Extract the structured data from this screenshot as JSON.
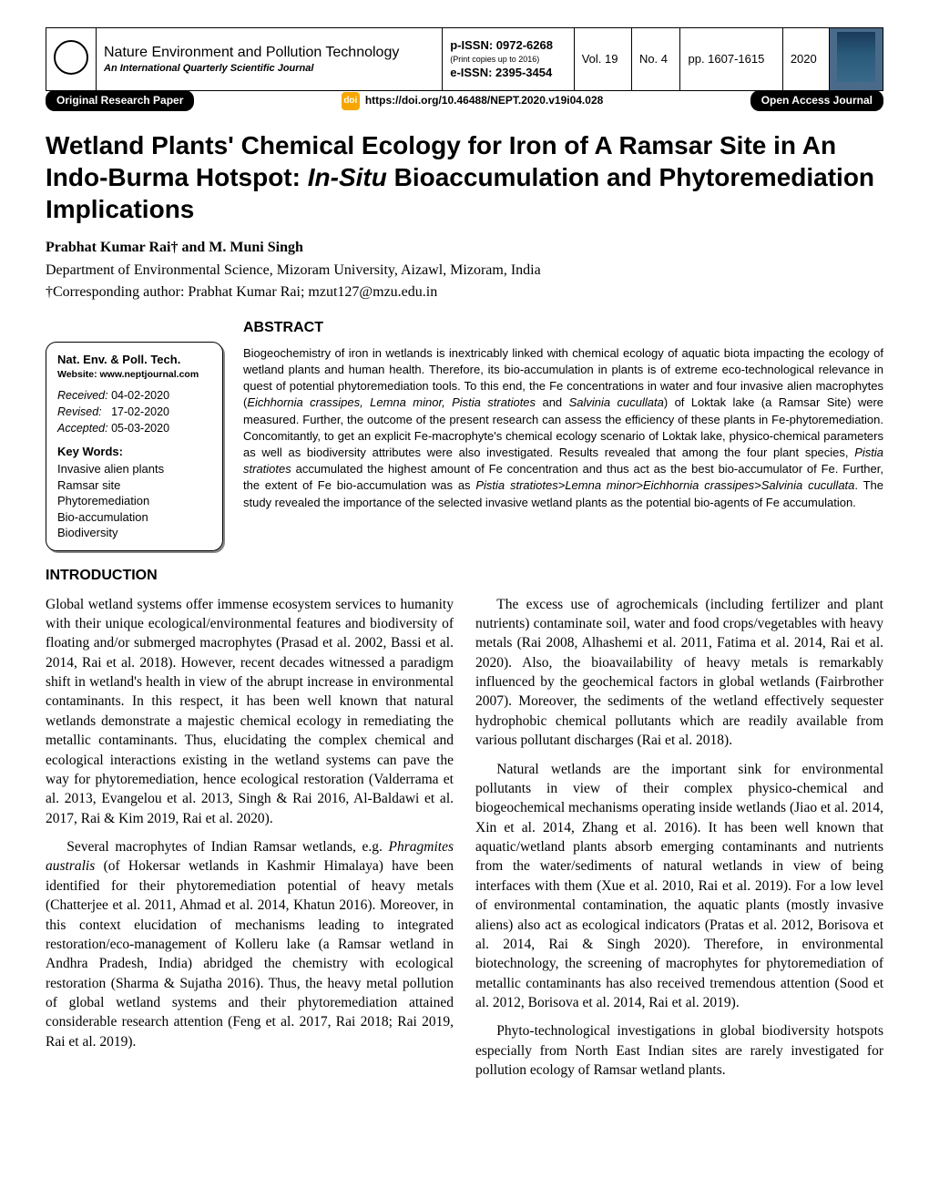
{
  "header": {
    "journal_name": "Nature Environment and Pollution Technology",
    "journal_subtitle": "An International Quarterly Scientific Journal",
    "p_issn_label": "p-ISSN: 0972-6268",
    "p_issn_note": "(Print copies up to 2016)",
    "e_issn_label": "e-ISSN: 2395-3454",
    "vol": "Vol. 19",
    "no": "No. 4",
    "pages": "pp. 1607-1615",
    "year": "2020",
    "original_research": "Original Research Paper",
    "doi_badge": "doi",
    "doi": "https://doi.org/10.46488/NEPT.2020.v19i04.028",
    "open_access": "Open Access Journal"
  },
  "title_part1": "Wetland Plants' Chemical Ecology for Iron of A Ramsar Site in An Indo-Burma Hotspot: ",
  "title_italic": "In-Situ",
  "title_part2": " Bioaccumulation and Phytoremediation Implications",
  "authors": "Prabhat Kumar Rai† and M. Muni Singh",
  "affiliation": "Department of Environmental Science, Mizoram University, Aizawl, Mizoram, India",
  "corresponding": "†Corresponding author: Prabhat Kumar Rai; mzut127@mzu.edu.in",
  "sidebar": {
    "boxtitle": "Nat. Env. & Poll. Tech.",
    "website": "Website: www.neptjournal.com",
    "received_label": "Received:",
    "received": "04-02-2020",
    "revised_label": "Revised:",
    "revised": "17-02-2020",
    "accepted_label": "Accepted:",
    "accepted": "05-03-2020",
    "kw_head": "Key Words:",
    "kw1": "Invasive alien plants",
    "kw2": "Ramsar site",
    "kw3": "Phytoremediation",
    "kw4": "Bio-accumulation",
    "kw5": "Biodiversity"
  },
  "abstract_head": "ABSTRACT",
  "abstract_p1": "Biogeochemistry of iron in wetlands is inextricably linked with chemical ecology of aquatic biota impacting the ecology of wetland plants and human health. Therefore, its bio-accumulation in plants is of extreme eco-technological relevance in quest of potential phytoremediation tools. To this end, the Fe concentrations in water and four invasive alien macrophytes (",
  "abstract_sp": "Eichhornia crassipes, Lemna minor, Pistia stratiotes",
  "abstract_and": " and ",
  "abstract_sp2": "Salvinia cucullata",
  "abstract_p2": ") of Loktak lake (a Ramsar Site) were measured. Further, the outcome of the present research can assess the efficiency of these plants in Fe-phytoremediation. Concomitantly, to get an explicit Fe-macrophyte's chemical ecology scenario of Loktak lake, physico-chemical parameters as well as biodiversity attributes were also investigated. Results revealed that among the four plant species, ",
  "abstract_sp3": "Pistia stratiotes",
  "abstract_p3": " accumulated the highest amount of Fe concentration and thus act as the best bio-accumulator of Fe. Further, the extent of Fe bio-accumulation was as ",
  "abstract_order": "Pistia stratiotes>Lemna minor>Eichhornia crassipes>Salvinia cucullata",
  "abstract_p4": ". The study revealed the importance of the selected invasive wetland plants as the potential bio-agents of Fe accumulation.",
  "intro_head": "INTRODUCTION",
  "body": {
    "p1": "Global wetland systems offer immense ecosystem services to humanity with their unique ecological/environmental features and biodiversity of floating and/or submerged macrophytes (Prasad et al. 2002, Bassi et al. 2014, Rai et al. 2018). However, recent decades witnessed a paradigm shift in wetland's health in view of the abrupt increase in environmental contaminants. In this respect, it has been well known that natural wetlands demonstrate a majestic chemical ecology in remediating the metallic contaminants. Thus, elucidating the complex chemical and ecological interactions existing in the wetland systems can pave the way for phytoremediation, hence ecological restoration (Valderrama et al. 2013, Evangelou et al. 2013, Singh & Rai 2016, Al-Baldawi et al. 2017, Rai & Kim 2019, Rai et al. 2020).",
    "p2a": "Several macrophytes of Indian Ramsar wetlands, e.g. ",
    "p2_ital": "Phragmites australis",
    "p2b": " (of Hokersar wetlands in Kashmir Himalaya) have been identified for their phytoremediation potential of heavy metals (Chatterjee et al. 2011, Ahmad et al. 2014, Khatun 2016). Moreover, in this context elucidation of mechanisms leading to integrated restoration/eco-management of Kolleru lake (a Ramsar wetland in Andhra Pradesh, India) abridged the chemistry with ecological restoration (Sharma & Sujatha 2016). Thus, the heavy metal pollution of global wetland systems and their phytoremediation attained considerable research attention (Feng et al. 2017, Rai 2018; Rai 2019, Rai et al. 2019).",
    "p3": "The excess use of agrochemicals (including fertilizer and plant nutrients) contaminate soil, water and food crops/vegetables with heavy metals (Rai 2008, Alhashemi et al. 2011, Fatima et al. 2014, Rai et al. 2020). Also, the bioavailability of heavy metals is remarkably influenced by the geochemical factors in global wetlands (Fairbrother 2007). Moreover, the sediments of the wetland effectively sequester hydrophobic chemical pollutants which are readily available from various pollutant discharges (Rai et al. 2018).",
    "p4": "Natural wetlands are the important sink for environmental pollutants in view of their complex physico-chemical and biogeochemical mechanisms operating inside wetlands (Jiao et al. 2014, Xin et al. 2014, Zhang et al. 2016). It has been well known that aquatic/wetland plants absorb emerging contaminants and nutrients from the water/sediments of natural wetlands in view of being interfaces with them (Xue et al. 2010, Rai et al. 2019). For a low level of environmental contamination, the aquatic plants (mostly invasive aliens) also act as ecological indicators (Pratas et al. 2012, Borisova et al. 2014, Rai & Singh 2020). Therefore, in environmental biotechnology, the screening of macrophytes for phytoremediation of metallic contaminants has also received tremendous attention (Sood et al. 2012, Borisova et al. 2014, Rai et al. 2019).",
    "p5": "Phyto-technological investigations in global biodiversity hotspots especially from North East Indian sites are rarely investigated for pollution ecology of Ramsar wetland plants."
  },
  "colors": {
    "black": "#000000",
    "white": "#ffffff",
    "doi_orange": "#f7a600",
    "thumb_bg": "#4a6a8a",
    "shadow": "#888888"
  }
}
